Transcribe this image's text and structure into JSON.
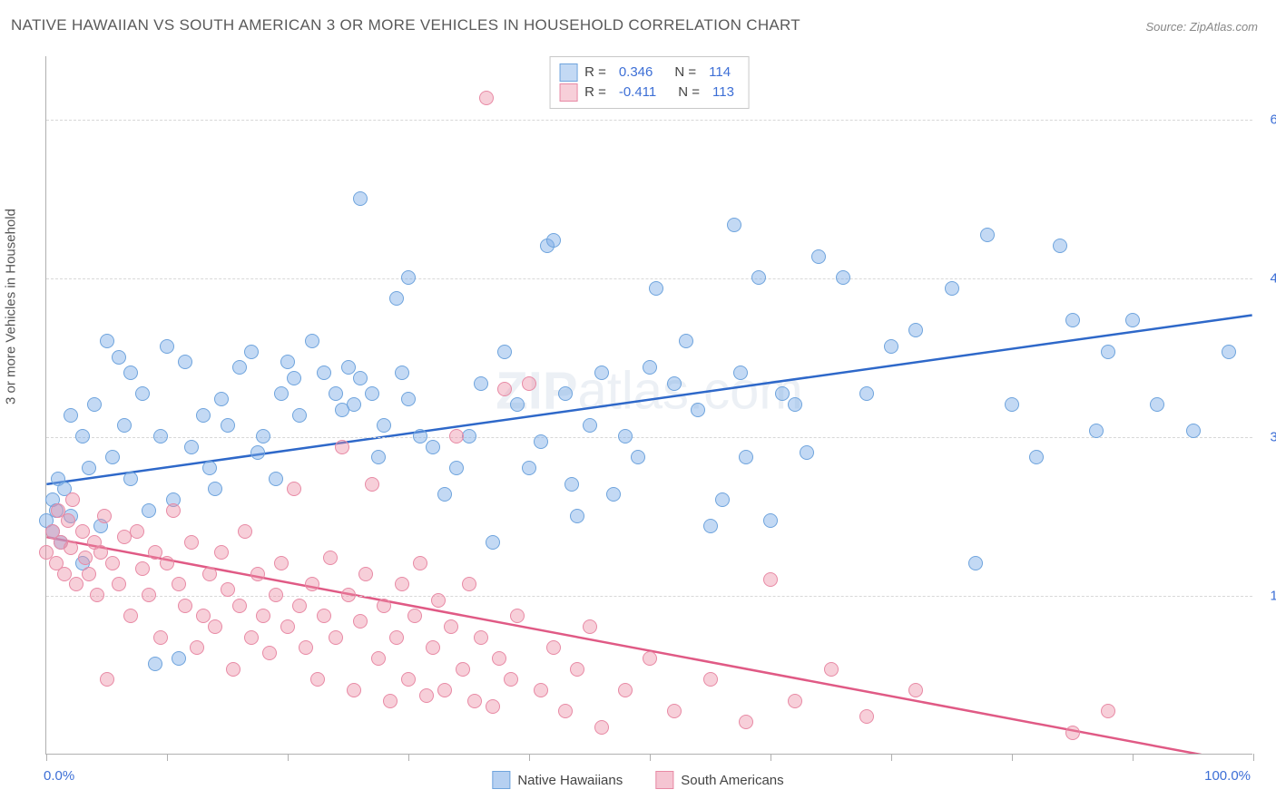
{
  "title": "NATIVE HAWAIIAN VS SOUTH AMERICAN 3 OR MORE VEHICLES IN HOUSEHOLD CORRELATION CHART",
  "source": "Source: ZipAtlas.com",
  "watermark": "ZIPatlas.com",
  "axis": {
    "y_title": "3 or more Vehicles in Household",
    "x_min_label": "0.0%",
    "x_max_label": "100.0%",
    "y_ticks": [
      {
        "v": 15.0,
        "label": "15.0%"
      },
      {
        "v": 30.0,
        "label": "30.0%"
      },
      {
        "v": 45.0,
        "label": "45.0%"
      },
      {
        "v": 60.0,
        "label": "60.0%"
      }
    ],
    "x_range": [
      0,
      100
    ],
    "y_range": [
      0,
      66
    ],
    "x_tick_positions": [
      0,
      10,
      20,
      30,
      40,
      50,
      60,
      70,
      80,
      90,
      100
    ]
  },
  "series": [
    {
      "name": "Native Hawaiians",
      "key": "native_hawaiians",
      "color_fill": "rgba(122,170,230,0.45)",
      "color_stroke": "#6fa4dd",
      "trend_color": "#2e68c9",
      "R": "0.346",
      "N": "114",
      "trend": {
        "x1": 0,
        "y1": 25.5,
        "x2": 100,
        "y2": 41.5
      },
      "points": [
        [
          0,
          22
        ],
        [
          0.5,
          24
        ],
        [
          0.5,
          21
        ],
        [
          0.8,
          23
        ],
        [
          1,
          26
        ],
        [
          1.2,
          20
        ],
        [
          1.5,
          25
        ],
        [
          2,
          22.5
        ],
        [
          2,
          32
        ],
        [
          3,
          18
        ],
        [
          3,
          30
        ],
        [
          3.5,
          27
        ],
        [
          4,
          33
        ],
        [
          4.5,
          21.5
        ],
        [
          5,
          39
        ],
        [
          5.5,
          28
        ],
        [
          6,
          37.5
        ],
        [
          6.5,
          31
        ],
        [
          7,
          26
        ],
        [
          7,
          36
        ],
        [
          8,
          34
        ],
        [
          8.5,
          23
        ],
        [
          9,
          8.5
        ],
        [
          9.5,
          30
        ],
        [
          10,
          38.5
        ],
        [
          10.5,
          24
        ],
        [
          11,
          9
        ],
        [
          11.5,
          37
        ],
        [
          12,
          29
        ],
        [
          13,
          32
        ],
        [
          13.5,
          27
        ],
        [
          14,
          25
        ],
        [
          14.5,
          33.5
        ],
        [
          15,
          31
        ],
        [
          16,
          36.5
        ],
        [
          17,
          38
        ],
        [
          17.5,
          28.5
        ],
        [
          18,
          30
        ],
        [
          19,
          26
        ],
        [
          19.5,
          34
        ],
        [
          20,
          37
        ],
        [
          20.5,
          35.5
        ],
        [
          21,
          32
        ],
        [
          22,
          39
        ],
        [
          23,
          36
        ],
        [
          24,
          34
        ],
        [
          24.5,
          32.5
        ],
        [
          25,
          36.5
        ],
        [
          25.5,
          33
        ],
        [
          26,
          35.5
        ],
        [
          26,
          52.5
        ],
        [
          27,
          34
        ],
        [
          27.5,
          28
        ],
        [
          28,
          31
        ],
        [
          29,
          43
        ],
        [
          29.5,
          36
        ],
        [
          30,
          33.5
        ],
        [
          30,
          45
        ],
        [
          31,
          30
        ],
        [
          32,
          29
        ],
        [
          33,
          24.5
        ],
        [
          34,
          27
        ],
        [
          35,
          30
        ],
        [
          36,
          35
        ],
        [
          37,
          20
        ],
        [
          38,
          38
        ],
        [
          39,
          33
        ],
        [
          40,
          27
        ],
        [
          41,
          29.5
        ],
        [
          41.5,
          48
        ],
        [
          42,
          48.5
        ],
        [
          43,
          34
        ],
        [
          43.5,
          25.5
        ],
        [
          44,
          22.5
        ],
        [
          45,
          31
        ],
        [
          46,
          36
        ],
        [
          47,
          24.5
        ],
        [
          48,
          30
        ],
        [
          49,
          28
        ],
        [
          50,
          36.5
        ],
        [
          50.5,
          44
        ],
        [
          52,
          35
        ],
        [
          53,
          39
        ],
        [
          54,
          32.5
        ],
        [
          55,
          21.5
        ],
        [
          56,
          24
        ],
        [
          57,
          50
        ],
        [
          57.5,
          36
        ],
        [
          58,
          28
        ],
        [
          59,
          45
        ],
        [
          60,
          22
        ],
        [
          61,
          34
        ],
        [
          62,
          33
        ],
        [
          63,
          28.5
        ],
        [
          64,
          47
        ],
        [
          66,
          45
        ],
        [
          68,
          34
        ],
        [
          70,
          38.5
        ],
        [
          72,
          40
        ],
        [
          75,
          44
        ],
        [
          77,
          18
        ],
        [
          78,
          49
        ],
        [
          80,
          33
        ],
        [
          82,
          28
        ],
        [
          84,
          48
        ],
        [
          85,
          41
        ],
        [
          87,
          30.5
        ],
        [
          88,
          38
        ],
        [
          90,
          41
        ],
        [
          92,
          33
        ],
        [
          95,
          30.5
        ],
        [
          98,
          38
        ]
      ]
    },
    {
      "name": "South Americans",
      "key": "south_americans",
      "color_fill": "rgba(235,140,165,0.42)",
      "color_stroke": "#e88aa5",
      "trend_color": "#e05a85",
      "R": "-0.411",
      "N": "113",
      "trend": {
        "x1": 0,
        "y1": 20.5,
        "x2": 100,
        "y2": -1.0
      },
      "points": [
        [
          0,
          19
        ],
        [
          0.5,
          21
        ],
        [
          0.8,
          18
        ],
        [
          1,
          23
        ],
        [
          1.2,
          20
        ],
        [
          1.5,
          17
        ],
        [
          1.8,
          22
        ],
        [
          2,
          19.5
        ],
        [
          2.2,
          24
        ],
        [
          2.5,
          16
        ],
        [
          3,
          21
        ],
        [
          3.2,
          18.5
        ],
        [
          3.5,
          17
        ],
        [
          4,
          20
        ],
        [
          4.2,
          15
        ],
        [
          4.5,
          19
        ],
        [
          4.8,
          22.5
        ],
        [
          5,
          7
        ],
        [
          5.5,
          18
        ],
        [
          6,
          16
        ],
        [
          6.5,
          20.5
        ],
        [
          7,
          13
        ],
        [
          7.5,
          21
        ],
        [
          8,
          17.5
        ],
        [
          8.5,
          15
        ],
        [
          9,
          19
        ],
        [
          9.5,
          11
        ],
        [
          10,
          18
        ],
        [
          10.5,
          23
        ],
        [
          11,
          16
        ],
        [
          11.5,
          14
        ],
        [
          12,
          20
        ],
        [
          12.5,
          10
        ],
        [
          13,
          13
        ],
        [
          13.5,
          17
        ],
        [
          14,
          12
        ],
        [
          14.5,
          19
        ],
        [
          15,
          15.5
        ],
        [
          15.5,
          8
        ],
        [
          16,
          14
        ],
        [
          16.5,
          21
        ],
        [
          17,
          11
        ],
        [
          17.5,
          17
        ],
        [
          18,
          13
        ],
        [
          18.5,
          9.5
        ],
        [
          19,
          15
        ],
        [
          19.5,
          18
        ],
        [
          20,
          12
        ],
        [
          20.5,
          25
        ],
        [
          21,
          14
        ],
        [
          21.5,
          10
        ],
        [
          22,
          16
        ],
        [
          22.5,
          7
        ],
        [
          23,
          13
        ],
        [
          23.5,
          18.5
        ],
        [
          24,
          11
        ],
        [
          24.5,
          29
        ],
        [
          25,
          15
        ],
        [
          25.5,
          6
        ],
        [
          26,
          12.5
        ],
        [
          26.5,
          17
        ],
        [
          27,
          25.5
        ],
        [
          27.5,
          9
        ],
        [
          28,
          14
        ],
        [
          28.5,
          5
        ],
        [
          29,
          11
        ],
        [
          29.5,
          16
        ],
        [
          30,
          7
        ],
        [
          30.5,
          13
        ],
        [
          31,
          18
        ],
        [
          31.5,
          5.5
        ],
        [
          32,
          10
        ],
        [
          32.5,
          14.5
        ],
        [
          33,
          6
        ],
        [
          33.5,
          12
        ],
        [
          34,
          30
        ],
        [
          34.5,
          8
        ],
        [
          35,
          16
        ],
        [
          35.5,
          5
        ],
        [
          36,
          11
        ],
        [
          36.5,
          62
        ],
        [
          37,
          4.5
        ],
        [
          37.5,
          9
        ],
        [
          38,
          34.5
        ],
        [
          38.5,
          7
        ],
        [
          39,
          13
        ],
        [
          40,
          35
        ],
        [
          41,
          6
        ],
        [
          42,
          10
        ],
        [
          43,
          4
        ],
        [
          44,
          8
        ],
        [
          45,
          12
        ],
        [
          46,
          2.5
        ],
        [
          48,
          6
        ],
        [
          50,
          9
        ],
        [
          52,
          4
        ],
        [
          55,
          7
        ],
        [
          58,
          3
        ],
        [
          60,
          16.5
        ],
        [
          62,
          5
        ],
        [
          65,
          8
        ],
        [
          68,
          3.5
        ],
        [
          72,
          6
        ],
        [
          85,
          2
        ],
        [
          88,
          4
        ]
      ]
    }
  ],
  "bottom_legend": [
    {
      "label": "Native Hawaiians",
      "fill": "rgba(122,170,230,0.55)",
      "stroke": "#6fa4dd"
    },
    {
      "label": "South Americans",
      "fill": "rgba(235,140,165,0.5)",
      "stroke": "#e88aa5"
    }
  ]
}
